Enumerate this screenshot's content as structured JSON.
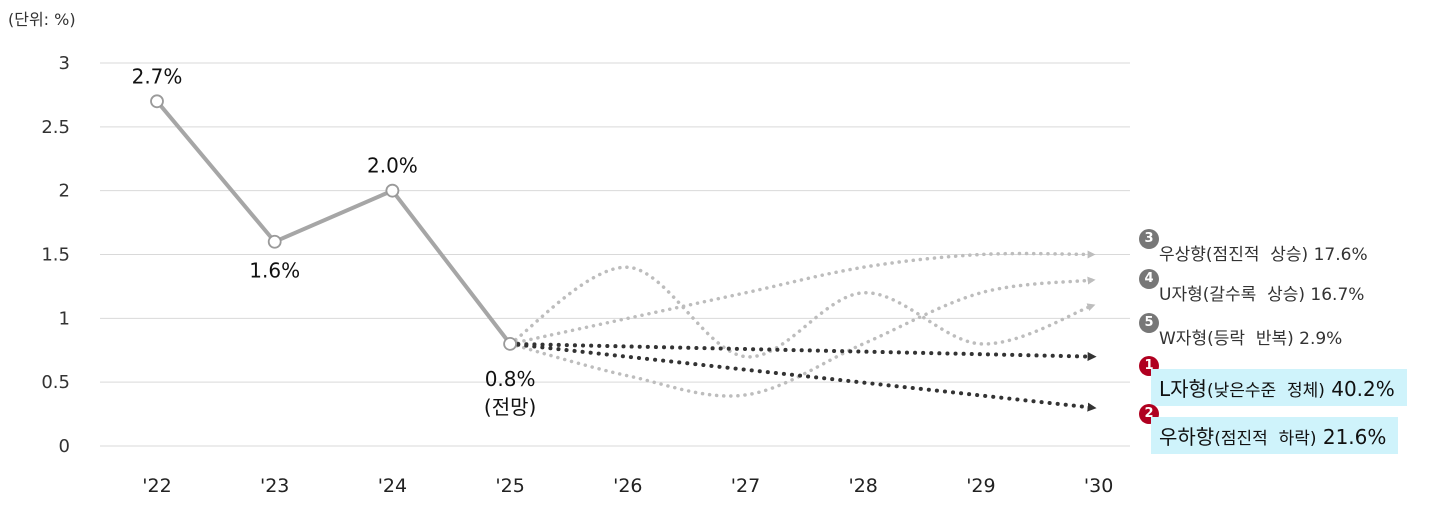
{
  "unit_label": "(단위: %)",
  "chart_data": {
    "type": "line",
    "x": [
      "'22",
      "'23",
      "'24",
      "'25",
      "'26",
      "'27",
      "'28",
      "'29",
      "'30"
    ],
    "ylim": [
      0,
      3
    ],
    "y_ticks": [
      "0",
      "0.5",
      "1",
      "1.5",
      "2",
      "2.5",
      "3"
    ],
    "grid": true,
    "actual": {
      "values": [
        2.7,
        1.6,
        2.0,
        0.8
      ],
      "labels": [
        "2.7%",
        "1.6%",
        "2.0%",
        "0.8%"
      ],
      "forecast_note": "(전망)"
    },
    "scenarios": [
      {
        "id": "s3",
        "badge": "3",
        "main": "우상향",
        "sub": "(점진적  상승)",
        "pct": "17.6%",
        "x": [
          "'25",
          "'26",
          "'27",
          "'28",
          "'29",
          "'30"
        ],
        "values": [
          0.8,
          1.0,
          1.2,
          1.4,
          1.5,
          1.5
        ],
        "color": "#bdbdbd",
        "badge_color": "#777777",
        "highlight": false
      },
      {
        "id": "s4",
        "badge": "4",
        "main": "U자형",
        "sub": "(갈수록  상승)",
        "pct": "16.7%",
        "x": [
          "'25",
          "'26",
          "'27",
          "'28",
          "'29",
          "'30"
        ],
        "values": [
          0.8,
          0.55,
          0.4,
          0.8,
          1.2,
          1.3
        ],
        "color": "#bdbdbd",
        "badge_color": "#777777",
        "highlight": false
      },
      {
        "id": "s5",
        "badge": "5",
        "main": "W자형",
        "sub": "(등락  반복)",
        "pct": "2.9%",
        "x": [
          "'25",
          "'26",
          "'27",
          "'28",
          "'29",
          "'30"
        ],
        "values": [
          0.8,
          1.4,
          0.7,
          1.2,
          0.8,
          1.1
        ],
        "color": "#bdbdbd",
        "badge_color": "#777777",
        "highlight": false
      },
      {
        "id": "s1",
        "badge": "1",
        "main": "L자형",
        "sub": "(낮은수준  정체)",
        "pct": "40.2%",
        "x": [
          "'25",
          "'30"
        ],
        "values": [
          0.8,
          0.7
        ],
        "color": "#333333",
        "badge_color": "#b00020",
        "highlight": true
      },
      {
        "id": "s2",
        "badge": "2",
        "main": "우하향",
        "sub": "(점진적  하락)",
        "pct": "21.6%",
        "x": [
          "'25",
          "'30"
        ],
        "values": [
          0.8,
          0.3
        ],
        "color": "#333333",
        "badge_color": "#b00020",
        "highlight": true
      }
    ]
  }
}
